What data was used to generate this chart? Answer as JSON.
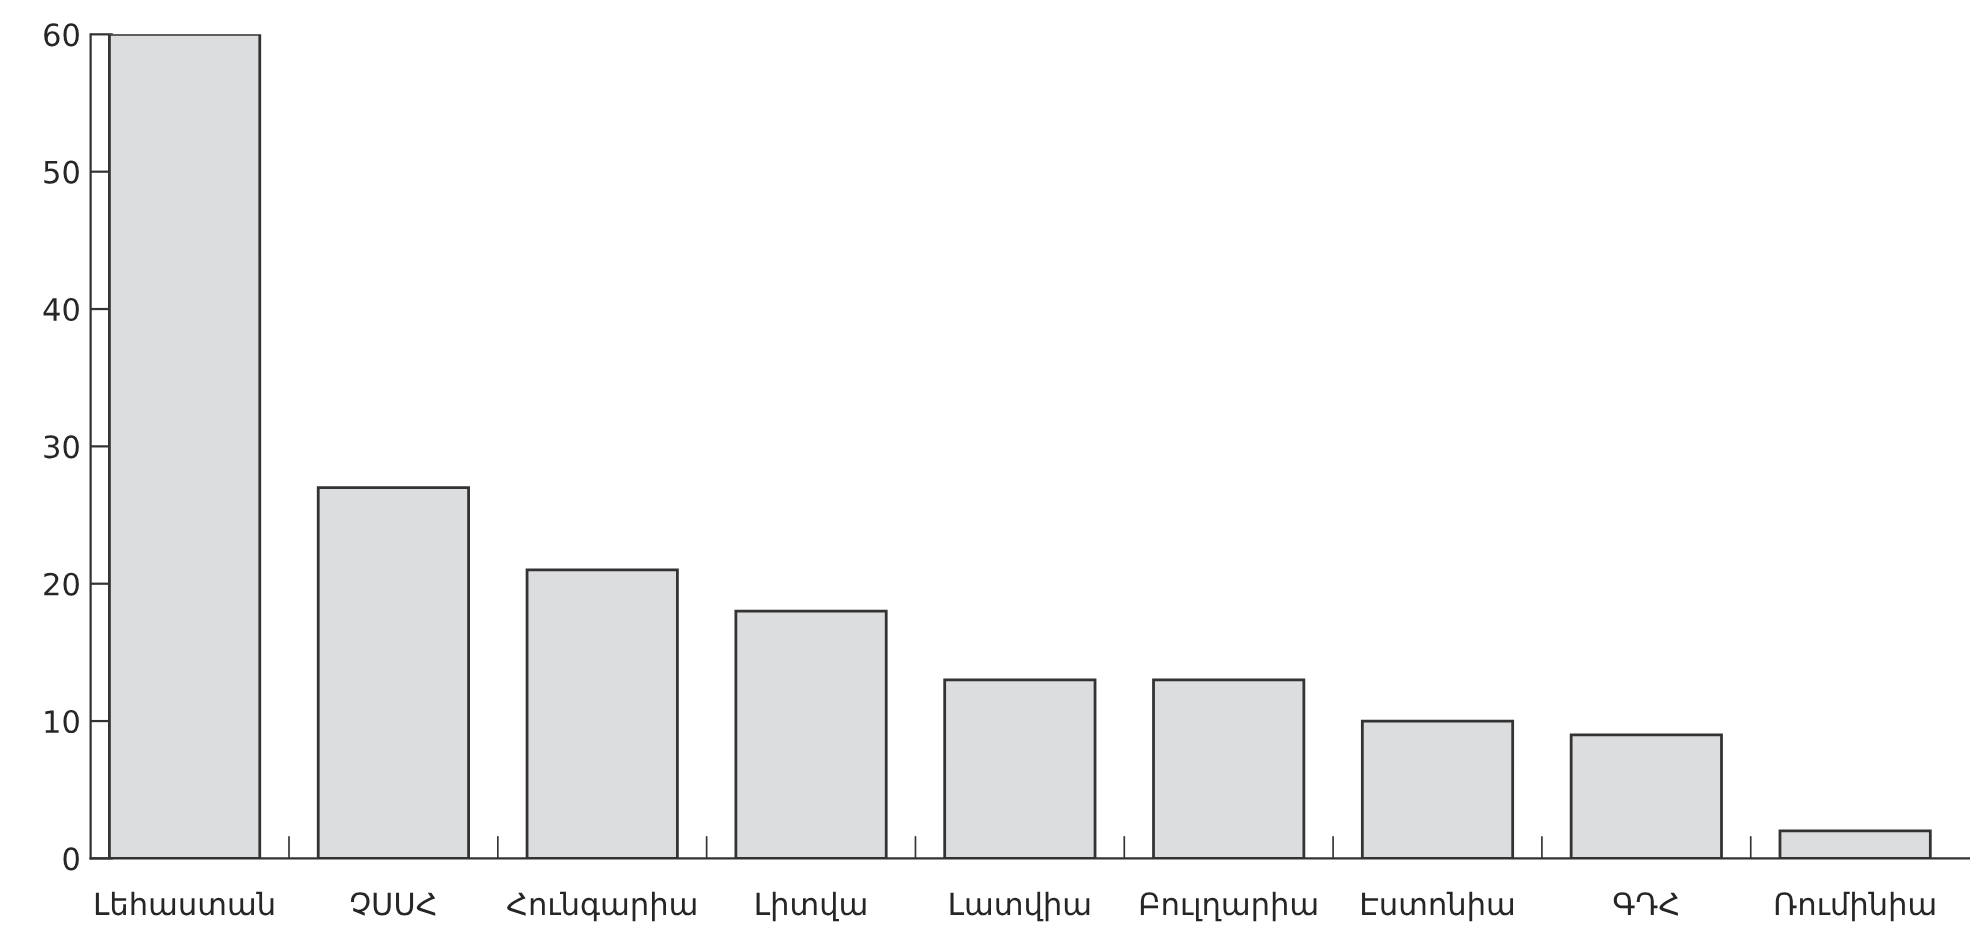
{
  "chart_data": {
    "type": "bar",
    "categories": [
      "Լեհաստան",
      "ՉՍՍՀ",
      "Հունգարիա",
      "Լիտվա",
      "Լատվիա",
      "Բուլղարիա",
      "Էստոնիա",
      "ԳԴՀ",
      "Ռումինիա"
    ],
    "values": [
      60,
      27,
      21,
      18,
      13,
      13,
      10,
      9,
      2
    ],
    "color": "#dcdddf",
    "ylim": [
      0,
      60
    ],
    "yticks": [
      0,
      10,
      20,
      30,
      40,
      50,
      60
    ],
    "grid": false
  }
}
